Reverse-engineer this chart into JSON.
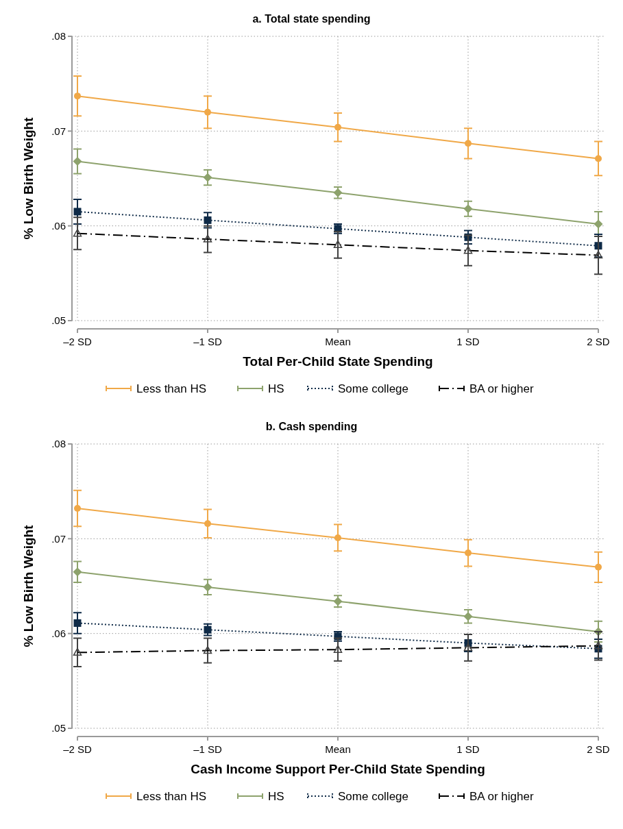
{
  "chart_data": [
    {
      "type": "line",
      "title": "a. Total state spending",
      "xlabel": "Total Per-Child State Spending",
      "ylabel": "% Low Birth Weight",
      "categories": [
        "–2 SD",
        "–1 SD",
        "Mean",
        "1 SD",
        "2 SD"
      ],
      "ylim": [
        0.05,
        0.08
      ],
      "yticks": [
        {
          "value": 0.05,
          "label": ".05"
        },
        {
          "value": 0.06,
          "label": ".06"
        },
        {
          "value": 0.07,
          "label": ".07"
        },
        {
          "value": 0.08,
          "label": ".08"
        }
      ],
      "grid": true,
      "legend": "bottom",
      "series": [
        {
          "name": "Less than HS",
          "color": "#f0a847",
          "marker": "circle",
          "line_style": "solid",
          "values": [
            0.0737,
            0.072,
            0.0704,
            0.0687,
            0.0671
          ],
          "errors": [
            0.0021,
            0.0017,
            0.0015,
            0.0016,
            0.0018
          ]
        },
        {
          "name": "HS",
          "color": "#8da26c",
          "marker": "diamond",
          "line_style": "solid",
          "values": [
            0.0668,
            0.0651,
            0.0635,
            0.0618,
            0.0602
          ],
          "errors": [
            0.0013,
            0.0008,
            0.0006,
            0.0008,
            0.0013
          ]
        },
        {
          "name": "Some college",
          "color": "#0e2a47",
          "marker": "square",
          "line_style": "dotted",
          "values": [
            0.0615,
            0.0606,
            0.0597,
            0.0588,
            0.0579
          ],
          "errors": [
            0.0013,
            0.0008,
            0.0005,
            0.0007,
            0.0012
          ]
        },
        {
          "name": "BA or higher",
          "color": "#404040",
          "marker": "triangle",
          "line_style": "dashed",
          "values": [
            0.0592,
            0.0586,
            0.058,
            0.0574,
            0.0569
          ],
          "errors": [
            0.0017,
            0.0014,
            0.0014,
            0.0016,
            0.002
          ]
        }
      ]
    },
    {
      "type": "line",
      "title": "b. Cash spending",
      "xlabel": "Cash Income Support Per-Child State Spending",
      "ylabel": "% Low Birth Weight",
      "categories": [
        "–2 SD",
        "–1 SD",
        "Mean",
        "1 SD",
        "2 SD"
      ],
      "ylim": [
        0.05,
        0.08
      ],
      "yticks": [
        {
          "value": 0.05,
          "label": ".05"
        },
        {
          "value": 0.06,
          "label": ".06"
        },
        {
          "value": 0.07,
          "label": ".07"
        },
        {
          "value": 0.08,
          "label": ".08"
        }
      ],
      "grid": true,
      "legend": "bottom",
      "series": [
        {
          "name": "Less than HS",
          "color": "#f0a847",
          "marker": "circle",
          "line_style": "solid",
          "values": [
            0.0732,
            0.0716,
            0.0701,
            0.0685,
            0.067
          ],
          "errors": [
            0.0019,
            0.0015,
            0.0014,
            0.0014,
            0.0016
          ]
        },
        {
          "name": "HS",
          "color": "#8da26c",
          "marker": "diamond",
          "line_style": "solid",
          "values": [
            0.0665,
            0.0649,
            0.0634,
            0.0618,
            0.0602
          ],
          "errors": [
            0.0011,
            0.0008,
            0.0006,
            0.0007,
            0.0011
          ]
        },
        {
          "name": "Some college",
          "color": "#0e2a47",
          "marker": "square",
          "line_style": "dotted",
          "values": [
            0.0611,
            0.0604,
            0.0597,
            0.059,
            0.0584
          ],
          "errors": [
            0.0011,
            0.0006,
            0.0005,
            0.0009,
            0.001
          ]
        },
        {
          "name": "BA or higher",
          "color": "#404040",
          "marker": "triangle",
          "line_style": "dashed",
          "values": [
            0.058,
            0.0582,
            0.0583,
            0.0585,
            0.0587
          ],
          "errors": [
            0.0015,
            0.0013,
            0.0012,
            0.0014,
            0.0015
          ]
        }
      ]
    }
  ]
}
